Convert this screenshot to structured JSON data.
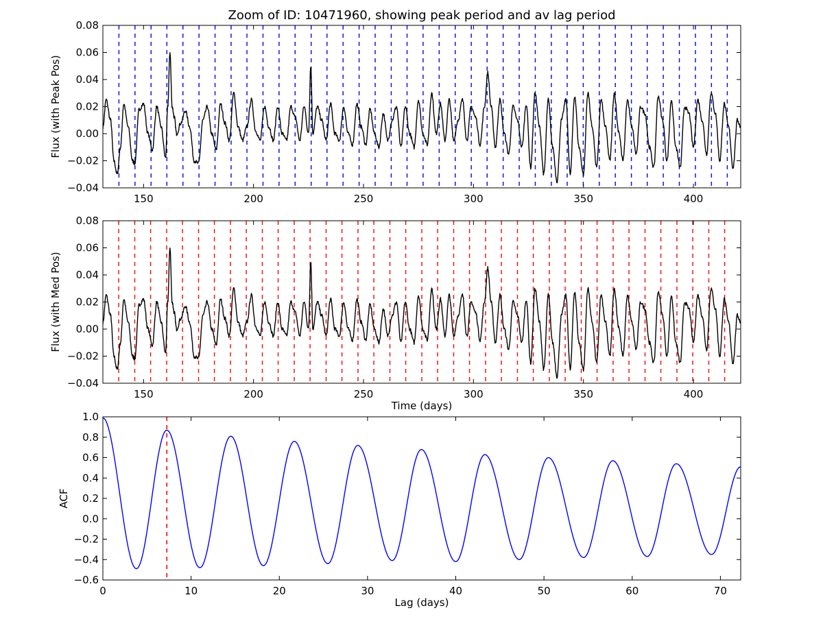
{
  "title": "Zoom of ID: 10471960, showing peak period and av lag period",
  "colors": {
    "peak_lines": "#0000ff",
    "med_lines": "#ff0000",
    "flux": "#000000",
    "acf": "#0000ff",
    "lag_line": "#ff0000"
  },
  "chart_data": [
    {
      "type": "line",
      "panel": "top",
      "title": "Zoom of ID: 10471960, showing peak period and av lag period",
      "xlabel": "",
      "ylabel": "Flux (with Peak Pos)",
      "xlim": [
        131.5,
        421.5
      ],
      "ylim": [
        -0.04,
        0.08
      ],
      "xticks": [
        150,
        200,
        250,
        300,
        350,
        400
      ],
      "xticklabels": [
        "150",
        "200",
        "250",
        "300",
        "350",
        "400"
      ],
      "yticks": [
        -0.04,
        -0.02,
        0.0,
        0.02,
        0.04,
        0.06,
        0.08
      ],
      "yticklabels": [
        "−0.04",
        "−0.02",
        "0.00",
        "0.02",
        "0.04",
        "0.06",
        "0.08"
      ],
      "vlines": [
        138.8,
        146.1,
        153.4,
        160.6,
        167.9,
        175.2,
        182.5,
        189.8,
        197.0,
        204.3,
        211.6,
        218.9,
        226.2,
        233.4,
        240.7,
        248.0,
        255.3,
        262.6,
        269.8,
        277.1,
        284.4,
        291.7,
        299.0,
        306.2,
        313.5,
        320.8,
        328.1,
        335.4,
        342.6,
        349.9,
        357.2,
        364.5,
        371.8,
        379.0,
        386.3,
        393.6,
        400.9,
        408.2,
        415.4
      ],
      "vline_style": "dashed",
      "flux_series": {
        "x": [
          131.5,
          133,
          135,
          136.5,
          138,
          139.5,
          141,
          143,
          145,
          146,
          148,
          150,
          152,
          154,
          156,
          158,
          160,
          161,
          162,
          163,
          164,
          165,
          167,
          169,
          171,
          173,
          175,
          177,
          179,
          181,
          183,
          185,
          187,
          189,
          191,
          193,
          195,
          197,
          199,
          201,
          203,
          205,
          207,
          209,
          211,
          213,
          215,
          217,
          219,
          221,
          223,
          225,
          226,
          227,
          229,
          231,
          233,
          235,
          237,
          239,
          241,
          243,
          245,
          247,
          249,
          251,
          253,
          255,
          257,
          259,
          261,
          263,
          265,
          267,
          269,
          271,
          273,
          275,
          277,
          279,
          281,
          283,
          285,
          287,
          289,
          291,
          293,
          295,
          297,
          299,
          301,
          303,
          305,
          306.5,
          308,
          310,
          312,
          314,
          316,
          318,
          320,
          322,
          324,
          326,
          328,
          330,
          332,
          334,
          336,
          338,
          340,
          342,
          344,
          346,
          348,
          350,
          352,
          354,
          356,
          358,
          360,
          362,
          364,
          366,
          368,
          370,
          372,
          374,
          376,
          378,
          380,
          382,
          384,
          386,
          388,
          390,
          392,
          394,
          396,
          398,
          400,
          402,
          404,
          406,
          408,
          410,
          412,
          414,
          416,
          418,
          420,
          421.5
        ],
        "y": [
          0.005,
          0.025,
          0.01,
          -0.02,
          -0.03,
          -0.01,
          0.022,
          0.005,
          -0.02,
          -0.022,
          0.018,
          0.022,
          0.0,
          -0.012,
          0.02,
          0.005,
          -0.018,
          0.02,
          0.06,
          0.02,
          0.012,
          0.0,
          0.008,
          0.017,
          0.005,
          -0.02,
          -0.022,
          0.01,
          0.02,
          0.0,
          -0.012,
          0.022,
          0.008,
          -0.005,
          0.03,
          0.005,
          -0.005,
          0.005,
          0.025,
          0.002,
          -0.005,
          0.02,
          0.005,
          -0.005,
          0.02,
          0.0,
          -0.005,
          0.02,
          0.012,
          -0.005,
          0.02,
          0.0,
          0.05,
          0.0,
          0.02,
          0.01,
          -0.005,
          0.022,
          0.0,
          -0.005,
          0.02,
          0.0,
          -0.008,
          0.022,
          0.005,
          -0.008,
          0.018,
          0.0,
          -0.01,
          0.015,
          -0.005,
          0.01,
          0.02,
          -0.01,
          0.02,
          0.0,
          -0.01,
          0.025,
          0.0,
          -0.008,
          0.03,
          0.0,
          0.022,
          -0.005,
          0.025,
          -0.005,
          0.01,
          0.025,
          -0.005,
          0.02,
          0.012,
          -0.008,
          0.02,
          0.045,
          0.02,
          -0.01,
          0.025,
          0.0,
          -0.015,
          0.02,
          0.01,
          -0.01,
          0.022,
          -0.025,
          0.03,
          0.005,
          -0.03,
          0.025,
          -0.01,
          -0.035,
          0.01,
          0.025,
          -0.03,
          0.028,
          -0.01,
          -0.03,
          0.03,
          0.005,
          -0.025,
          0.025,
          0.005,
          -0.02,
          0.03,
          0.002,
          -0.02,
          0.025,
          0.005,
          -0.015,
          0.02,
          0.015,
          -0.01,
          -0.025,
          0.028,
          0.01,
          -0.02,
          0.025,
          -0.01,
          -0.025,
          0.02,
          0.015,
          -0.01,
          0.025,
          0.01,
          -0.015,
          0.03,
          0.015,
          -0.02,
          0.022,
          0.005,
          -0.025,
          0.01,
          0.005
        ]
      }
    },
    {
      "type": "line",
      "panel": "middle",
      "xlabel": "Time (days)",
      "ylabel": "Flux (with Med Pos)",
      "xlim": [
        131.5,
        421.5
      ],
      "ylim": [
        -0.04,
        0.08
      ],
      "xticks": [
        150,
        200,
        250,
        300,
        350,
        400
      ],
      "xticklabels": [
        "150",
        "200",
        "250",
        "300",
        "350",
        "400"
      ],
      "yticks": [
        -0.04,
        -0.02,
        0.0,
        0.02,
        0.04,
        0.06,
        0.08
      ],
      "yticklabels": [
        "−0.04",
        "−0.02",
        "0.00",
        "0.02",
        "0.04",
        "0.06",
        "0.08"
      ],
      "vlines": [
        138.7,
        146.0,
        153.2,
        160.5,
        167.7,
        175.0,
        182.2,
        189.5,
        196.7,
        204.0,
        211.2,
        218.5,
        225.7,
        233.0,
        240.2,
        247.5,
        254.7,
        262.0,
        269.2,
        276.5,
        283.7,
        291.0,
        298.2,
        305.5,
        312.7,
        320.0,
        327.2,
        334.5,
        341.7,
        349.0,
        356.2,
        363.5,
        370.7,
        378.0,
        385.2,
        392.5,
        399.7,
        407.0,
        414.2
      ],
      "vline_style": "dashed"
    },
    {
      "type": "line",
      "panel": "bottom",
      "xlabel": "Lag (days)",
      "ylabel": "ACF",
      "xlim": [
        0,
        72.3
      ],
      "ylim": [
        -0.6,
        1.0
      ],
      "xticks": [
        0,
        10,
        20,
        30,
        40,
        50,
        60,
        70
      ],
      "xticklabels": [
        "0",
        "10",
        "20",
        "30",
        "40",
        "50",
        "60",
        "70"
      ],
      "yticks": [
        -0.6,
        -0.4,
        -0.2,
        0.0,
        0.2,
        0.4,
        0.6,
        0.8,
        1.0
      ],
      "yticklabels": [
        "−0.6",
        "−0.4",
        "−0.2",
        "0.0",
        "0.2",
        "0.4",
        "0.6",
        "0.8",
        "1.0"
      ],
      "vline": 7.25,
      "acf_peaks": [
        {
          "lag": 0.0,
          "value": 0.99
        },
        {
          "lag": 7.25,
          "value": 0.87
        },
        {
          "lag": 14.5,
          "value": 0.81
        },
        {
          "lag": 21.7,
          "value": 0.76
        },
        {
          "lag": 28.9,
          "value": 0.72
        },
        {
          "lag": 36.1,
          "value": 0.68
        },
        {
          "lag": 43.3,
          "value": 0.63
        },
        {
          "lag": 50.5,
          "value": 0.6
        },
        {
          "lag": 57.8,
          "value": 0.57
        },
        {
          "lag": 65.0,
          "value": 0.54
        },
        {
          "lag": 72.3,
          "value": 0.51
        }
      ],
      "acf_troughs": [
        {
          "lag": 3.8,
          "value": -0.49
        },
        {
          "lag": 11.0,
          "value": -0.48
        },
        {
          "lag": 18.2,
          "value": -0.46
        },
        {
          "lag": 25.5,
          "value": -0.44
        },
        {
          "lag": 32.8,
          "value": -0.41
        },
        {
          "lag": 40.0,
          "value": -0.42
        },
        {
          "lag": 47.2,
          "value": -0.4
        },
        {
          "lag": 54.5,
          "value": -0.38
        },
        {
          "lag": 61.7,
          "value": -0.37
        },
        {
          "lag": 69.0,
          "value": -0.35
        }
      ]
    }
  ]
}
